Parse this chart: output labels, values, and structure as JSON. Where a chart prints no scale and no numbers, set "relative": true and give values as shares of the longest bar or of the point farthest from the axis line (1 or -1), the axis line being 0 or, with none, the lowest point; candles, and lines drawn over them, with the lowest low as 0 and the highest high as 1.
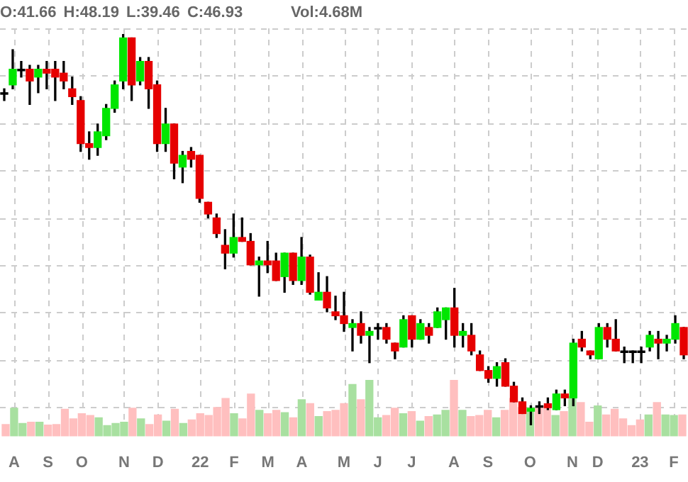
{
  "chart_data": [
    {
      "type": "candlestick",
      "title": "O:41.66 H:48.19 L:39.46 C:46.93",
      "relative": true,
      "ohlc": [
        [
          0.85,
          0.86,
          0.83,
          0.846
        ],
        [
          0.87,
          0.96,
          0.86,
          0.91
        ],
        [
          0.91,
          0.93,
          0.89,
          0.906
        ],
        [
          0.91,
          0.92,
          0.82,
          0.88
        ],
        [
          0.89,
          0.92,
          0.85,
          0.91
        ],
        [
          0.91,
          0.93,
          0.86,
          0.9
        ],
        [
          0.91,
          0.93,
          0.83,
          0.89
        ],
        [
          0.9,
          0.93,
          0.86,
          0.88
        ],
        [
          0.86,
          0.89,
          0.82,
          0.84
        ],
        [
          0.83,
          0.84,
          0.7,
          0.72
        ],
        [
          0.72,
          0.75,
          0.68,
          0.71
        ],
        [
          0.71,
          0.77,
          0.69,
          0.75
        ],
        [
          0.74,
          0.82,
          0.73,
          0.81
        ],
        [
          0.81,
          0.88,
          0.8,
          0.87
        ],
        [
          0.88,
          1,
          0.86,
          0.99
        ],
        [
          0.99,
          0.99,
          0.83,
          0.87
        ],
        [
          0.88,
          0.94,
          0.87,
          0.93
        ],
        [
          0.93,
          0.94,
          0.81,
          0.86
        ],
        [
          0.87,
          0.88,
          0.7,
          0.72
        ],
        [
          0.72,
          0.81,
          0.7,
          0.77
        ],
        [
          0.77,
          0.77,
          0.63,
          0.67
        ],
        [
          0.66,
          0.7,
          0.62,
          0.69
        ],
        [
          0.7,
          0.71,
          0.66,
          0.68
        ],
        [
          0.69,
          0.69,
          0.57,
          0.58
        ],
        [
          0.57,
          0.57,
          0.53,
          0.54
        ],
        [
          0.53,
          0.54,
          0.48,
          0.49
        ],
        [
          0.46,
          0.5,
          0.4,
          0.44
        ],
        [
          0.44,
          0.54,
          0.43,
          0.48
        ],
        [
          0.48,
          0.53,
          0.47,
          0.47
        ],
        [
          0.47,
          0.49,
          0.41,
          0.41
        ],
        [
          0.41,
          0.43,
          0.33,
          0.42
        ],
        [
          0.42,
          0.47,
          0.39,
          0.41
        ],
        [
          0.42,
          0.44,
          0.37,
          0.37
        ],
        [
          0.38,
          0.44,
          0.34,
          0.44
        ],
        [
          0.44,
          0.44,
          0.36,
          0.37
        ],
        [
          0.37,
          0.48,
          0.36,
          0.43
        ],
        [
          0.43,
          0.435,
          0.335,
          0.34
        ],
        [
          0.32,
          0.39,
          0.32,
          0.34
        ],
        [
          0.34,
          0.38,
          0.29,
          0.3
        ],
        [
          0.29,
          0.33,
          0.27,
          0.28
        ],
        [
          0.28,
          0.34,
          0.24,
          0.26
        ],
        [
          0.25,
          0.27,
          0.19,
          0.26
        ],
        [
          0.26,
          0.29,
          0.21,
          0.23
        ],
        [
          0.23,
          0.25,
          0.16,
          0.24
        ],
        [
          0.25,
          0.26,
          0.22,
          0.246
        ],
        [
          0.25,
          0.26,
          0.21,
          0.22
        ],
        [
          0.21,
          0.21,
          0.17,
          0.19
        ],
        [
          0.2,
          0.28,
          0.2,
          0.27
        ],
        [
          0.28,
          0.28,
          0.2,
          0.22
        ],
        [
          0.22,
          0.27,
          0.22,
          0.26
        ],
        [
          0.25,
          0.26,
          0.21,
          0.23
        ],
        [
          0.25,
          0.3,
          0.25,
          0.29
        ],
        [
          0.27,
          0.3,
          0.22,
          0.3
        ],
        [
          0.3,
          0.35,
          0.2,
          0.23
        ],
        [
          0.23,
          0.26,
          0.2,
          0.24
        ],
        [
          0.23,
          0.26,
          0.18,
          0.19
        ],
        [
          0.18,
          0.19,
          0.14,
          0.14
        ],
        [
          0.14,
          0.15,
          0.11,
          0.12
        ],
        [
          0.12,
          0.16,
          0.1,
          0.15
        ],
        [
          0.16,
          0.17,
          0.1,
          0.1
        ],
        [
          0.1,
          0.11,
          0.06,
          0.06
        ],
        [
          0.06,
          0.07,
          0.03,
          0.03
        ],
        [
          0.036,
          0.05,
          0,
          0.043
        ],
        [
          0.05,
          0.06,
          0.03,
          0.046
        ],
        [
          0.055,
          0.07,
          0.04,
          0.045
        ],
        [
          0.04,
          0.09,
          0.04,
          0.08
        ],
        [
          0.08,
          0.09,
          0.05,
          0.07
        ],
        [
          0.07,
          0.22,
          0.05,
          0.21
        ],
        [
          0.22,
          0.24,
          0.19,
          0.2
        ],
        [
          0.19,
          0.19,
          0.17,
          0.18
        ],
        [
          0.17,
          0.26,
          0.17,
          0.25
        ],
        [
          0.25,
          0.26,
          0.2,
          0.22
        ],
        [
          0.22,
          0.27,
          0.19,
          0.19
        ],
        [
          0.19,
          0.2,
          0.16,
          0.186
        ],
        [
          0.19,
          0.19,
          0.16,
          0.186
        ],
        [
          0.19,
          0.2,
          0.16,
          0.186
        ],
        [
          0.2,
          0.24,
          0.19,
          0.23
        ],
        [
          0.22,
          0.24,
          0.17,
          0.21
        ],
        [
          0.21,
          0.23,
          0.19,
          0.22
        ],
        [
          0.22,
          0.28,
          0.21,
          0.26
        ],
        [
          0.25,
          0.25,
          0.17,
          0.18
        ]
      ],
      "colors": [
        "#000000",
        "#00e600",
        "#000000",
        "#e60000",
        "#00e600",
        "#e60000",
        "#e60000",
        "#e60000",
        "#e60000",
        "#e60000",
        "#e60000",
        "#00e600",
        "#00e600",
        "#00e600",
        "#00e600",
        "#e60000",
        "#00e600",
        "#e60000",
        "#e60000",
        "#00e600",
        "#e60000",
        "#00e600",
        "#e60000",
        "#e60000",
        "#e60000",
        "#e60000",
        "#e60000",
        "#00e600",
        "#e60000",
        "#e60000",
        "#00e600",
        "#e60000",
        "#e60000",
        "#00e600",
        "#e60000",
        "#00e600",
        "#e60000",
        "#00e600",
        "#e60000",
        "#e60000",
        "#e60000",
        "#00e600",
        "#e60000",
        "#00e600",
        "#000000",
        "#e60000",
        "#e60000",
        "#00e600",
        "#e60000",
        "#00e600",
        "#e60000",
        "#00e600",
        "#00e600",
        "#e60000",
        "#00e600",
        "#e60000",
        "#e60000",
        "#e60000",
        "#00e600",
        "#e60000",
        "#e60000",
        "#e60000",
        "#00e600",
        "#000000",
        "#e60000",
        "#00e600",
        "#e60000",
        "#00e600",
        "#e60000",
        "#e60000",
        "#00e600",
        "#e60000",
        "#e60000",
        "#000000",
        "#000000",
        "#000000",
        "#00e600",
        "#e60000",
        "#00e600",
        "#00e600",
        "#e60000"
      ]
    },
    {
      "type": "bar",
      "title": "Vol:4.68M",
      "relative": true,
      "grid": true,
      "tick_labels": "x",
      "categories": [
        null,
        "A",
        null,
        null,
        null,
        "S",
        null,
        null,
        null,
        "O",
        null,
        null,
        null,
        null,
        "N",
        null,
        null,
        null,
        "D",
        null,
        null,
        null,
        null,
        "22",
        null,
        null,
        null,
        "F",
        null,
        null,
        null,
        "M",
        null,
        null,
        null,
        "A",
        null,
        null,
        null,
        null,
        "M",
        null,
        null,
        null,
        "J",
        null,
        null,
        null,
        "J",
        null,
        null,
        null,
        null,
        "A",
        null,
        null,
        null,
        "S",
        null,
        null,
        null,
        null,
        "O",
        null,
        null,
        null,
        null,
        "N",
        null,
        null,
        "D",
        null,
        null,
        null,
        null,
        "23",
        null,
        null,
        null,
        "F",
        null
      ],
      "values": [
        0.21,
        0.5,
        0.23,
        0.25,
        0.25,
        0.2,
        0.21,
        0.48,
        0.31,
        0.4,
        0.37,
        0.33,
        0.19,
        0.23,
        0.25,
        0.5,
        0.31,
        0.21,
        0.38,
        0.27,
        0.48,
        0.23,
        0.29,
        0.4,
        0.37,
        0.51,
        0.67,
        0.4,
        0.31,
        0.75,
        0.46,
        0.4,
        0.46,
        0.42,
        0.33,
        0.65,
        0.58,
        0.35,
        0.44,
        0.46,
        0.58,
        0.92,
        0.65,
        1,
        0.33,
        0.37,
        0.5,
        0.4,
        0.44,
        0.27,
        0.35,
        0.38,
        0.46,
        1,
        0.46,
        0.35,
        0.37,
        0.46,
        0.33,
        0.46,
        0.67,
        0.51,
        0.51,
        0.5,
        0.53,
        0.37,
        0.44,
        0.71,
        0.6,
        0.25,
        0.54,
        0.38,
        0.48,
        0.31,
        0.19,
        0.29,
        0.38,
        0.6,
        0.38,
        0.37,
        0.38
      ],
      "colors": [
        "#ffbfbf",
        "#a8e0a0",
        "#a8e0a0",
        "#ffbfbf",
        "#a8e0a0",
        "#ffbfbf",
        "#ffbfbf",
        "#ffbfbf",
        "#ffbfbf",
        "#ffbfbf",
        "#ffbfbf",
        "#a8e0a0",
        "#a8e0a0",
        "#a8e0a0",
        "#a8e0a0",
        "#ffbfbf",
        "#a8e0a0",
        "#ffbfbf",
        "#ffbfbf",
        "#a8e0a0",
        "#ffbfbf",
        "#a8e0a0",
        "#ffbfbf",
        "#ffbfbf",
        "#ffbfbf",
        "#ffbfbf",
        "#ffbfbf",
        "#a8e0a0",
        "#ffbfbf",
        "#ffbfbf",
        "#a8e0a0",
        "#ffbfbf",
        "#ffbfbf",
        "#a8e0a0",
        "#ffbfbf",
        "#a8e0a0",
        "#ffbfbf",
        "#a8e0a0",
        "#ffbfbf",
        "#ffbfbf",
        "#ffbfbf",
        "#a8e0a0",
        "#ffbfbf",
        "#a8e0a0",
        "#a8e0a0",
        "#ffbfbf",
        "#ffbfbf",
        "#a8e0a0",
        "#ffbfbf",
        "#a8e0a0",
        "#ffbfbf",
        "#a8e0a0",
        "#a8e0a0",
        "#ffbfbf",
        "#a8e0a0",
        "#ffbfbf",
        "#ffbfbf",
        "#ffbfbf",
        "#a8e0a0",
        "#ffbfbf",
        "#ffbfbf",
        "#ffbfbf",
        "#a8e0a0",
        "#ffbfbf",
        "#ffbfbf",
        "#a8e0a0",
        "#ffbfbf",
        "#a8e0a0",
        "#ffbfbf",
        "#ffbfbf",
        "#a8e0a0",
        "#ffbfbf",
        "#ffbfbf",
        "#ffbfbf",
        "#ffbfbf",
        "#ffbfbf",
        "#a8e0a0",
        "#ffbfbf",
        "#a8e0a0",
        "#a8e0a0",
        "#ffbfbf"
      ]
    }
  ]
}
